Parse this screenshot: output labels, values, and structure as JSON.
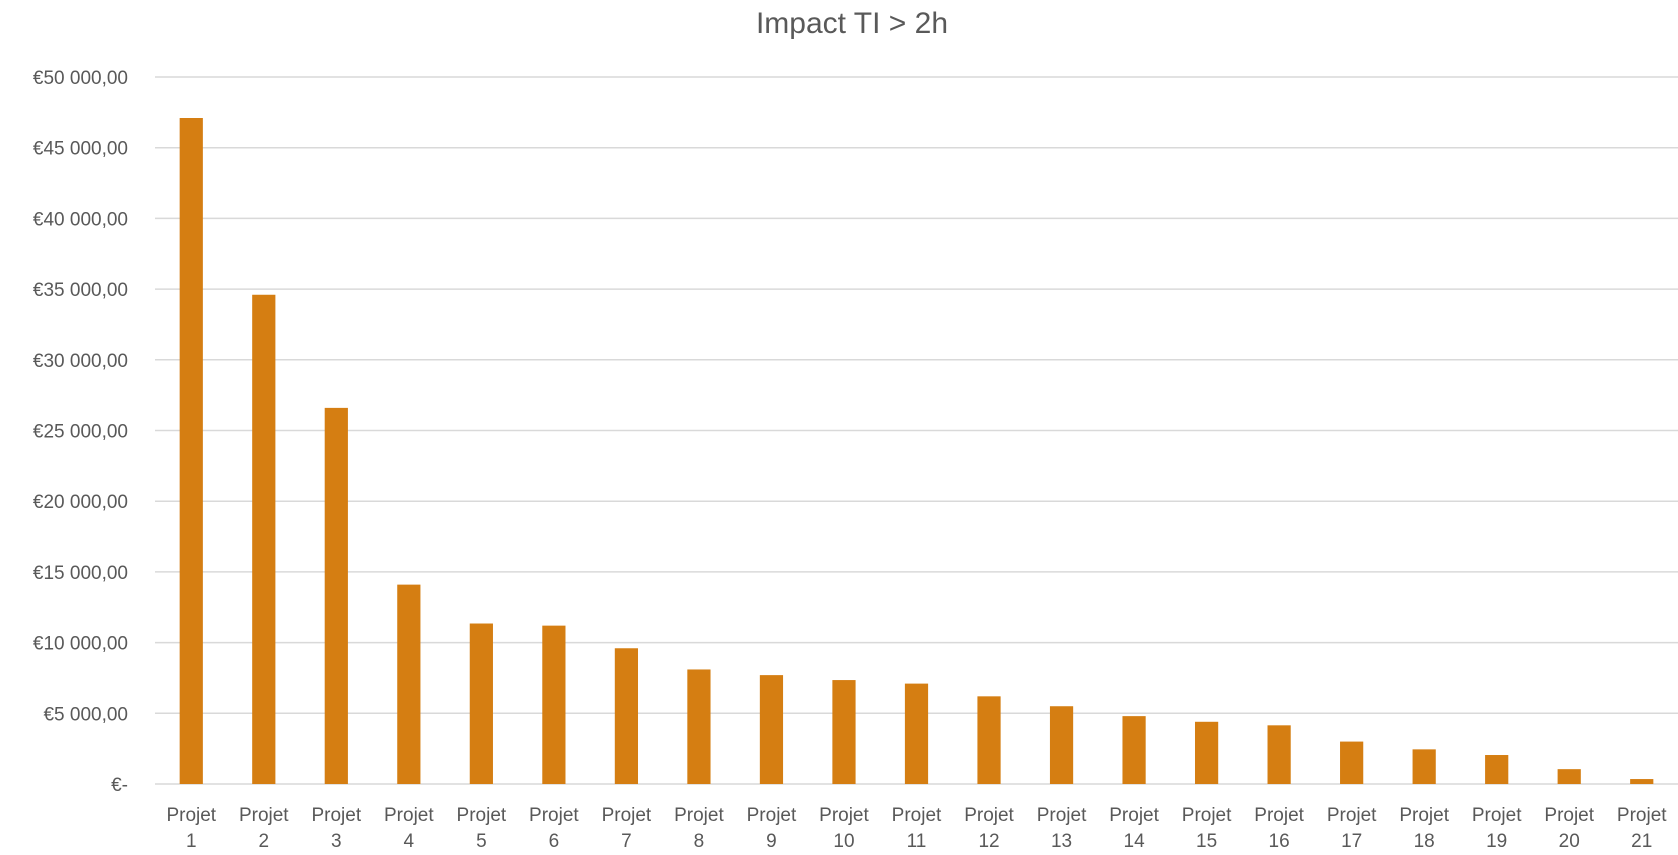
{
  "chart_data": {
    "type": "bar",
    "title": "Impact TI > 2h",
    "xlabel": "",
    "ylabel": "",
    "ylim": [
      0,
      50000
    ],
    "y_ticks": [
      0,
      5000,
      10000,
      15000,
      20000,
      25000,
      30000,
      35000,
      40000,
      45000,
      50000
    ],
    "y_tick_labels": [
      "€-",
      "€5 000,00",
      "€10 000,00",
      "€15 000,00",
      "€20 000,00",
      "€25 000,00",
      "€30 000,00",
      "€35 000,00",
      "€40 000,00",
      "€45 000,00",
      "€50 000,00"
    ],
    "categories": [
      [
        "Projet",
        "1"
      ],
      [
        "Projet",
        "2"
      ],
      [
        "Projet",
        "3"
      ],
      [
        "Projet",
        "4"
      ],
      [
        "Projet",
        "5"
      ],
      [
        "Projet",
        "6"
      ],
      [
        "Projet",
        "7"
      ],
      [
        "Projet",
        "8"
      ],
      [
        "Projet",
        "9"
      ],
      [
        "Projet",
        "10"
      ],
      [
        "Projet",
        "11"
      ],
      [
        "Projet",
        "12"
      ],
      [
        "Projet",
        "13"
      ],
      [
        "Projet",
        "14"
      ],
      [
        "Projet",
        "15"
      ],
      [
        "Projet",
        "16"
      ],
      [
        "Projet",
        "17"
      ],
      [
        "Projet",
        "18"
      ],
      [
        "Projet",
        "19"
      ],
      [
        "Projet",
        "20"
      ],
      [
        "Projet",
        "21"
      ]
    ],
    "values": [
      47100,
      34600,
      26600,
      14100,
      11350,
      11200,
      9600,
      8100,
      7700,
      7350,
      7100,
      6200,
      5500,
      4800,
      4400,
      4150,
      3000,
      2450,
      2050,
      1050,
      350
    ],
    "grid": true,
    "legend": "none",
    "bar_color": "#D57E12",
    "grid_color": "#D9D9D9",
    "text_color": "#595959"
  }
}
